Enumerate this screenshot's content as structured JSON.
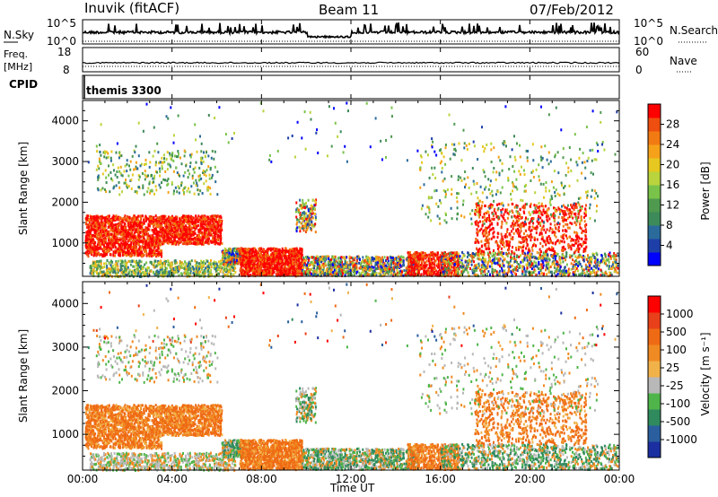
{
  "header": {
    "station": "Inuvik (fitACF)",
    "beam": "Beam 11",
    "date": "07/Feb/2012"
  },
  "chart_data": [
    {
      "type": "line",
      "name": "noise-panel",
      "left_label": "N.Sky",
      "right_label": "N.Search",
      "left_ticks": [
        "10^5",
        "10^0"
      ],
      "right_ticks": [
        "10^5",
        "10^0"
      ],
      "yscale": "log",
      "ylim": [
        1,
        100000
      ]
    },
    {
      "type": "line",
      "name": "freq-panel",
      "left_label_lines": [
        "Freq.",
        "[MHz]"
      ],
      "left_ticks": [
        "18",
        "8"
      ],
      "ylim_left": [
        8,
        18
      ],
      "right_label": "Nave",
      "right_ticks": [
        "60",
        "0"
      ],
      "ylim_right": [
        0,
        60
      ]
    },
    {
      "type": "table",
      "name": "cpid-panel",
      "label": "CPID",
      "program": "themis 3300"
    },
    {
      "type": "heatmap",
      "name": "power-panel",
      "ylabel": "Slant Range [km]",
      "yticks": [
        "4000",
        "3000",
        "2000",
        "1000"
      ],
      "ylim": [
        180,
        4500
      ],
      "colorbar": {
        "label": "Power [dB]",
        "ticks": [
          "28",
          "24",
          "20",
          "16",
          "12",
          "8",
          "4"
        ],
        "colors": [
          "#0000ff",
          "#1e3fa8",
          "#2a6b9c",
          "#3d8a5a",
          "#4f9a4f",
          "#79c34a",
          "#b9d43c",
          "#e6c820",
          "#f5a21a",
          "#f27a12",
          "#ee4e10",
          "#ff0000"
        ]
      }
    },
    {
      "type": "heatmap",
      "name": "velocity-panel",
      "ylabel": "Slant Range [km]",
      "yticks": [
        "4000",
        "3000",
        "2000",
        "1000"
      ],
      "ylim": [
        180,
        4500
      ],
      "colorbar": {
        "label": "Velocity [m s⁻¹]",
        "ticks": [
          "1000",
          "500",
          "100",
          "25",
          "-25",
          "-100",
          "-500",
          "-1000"
        ],
        "colors": [
          "#1b2fa0",
          "#2a5e9e",
          "#2f8a5e",
          "#4fb54a",
          "#b8b8b8",
          "#f2b24a",
          "#f08a22",
          "#ef6a14",
          "#e8401a",
          "#ff0000"
        ]
      }
    }
  ],
  "xaxis": {
    "label": "Time UT",
    "ticks": [
      "00:00",
      "04:00",
      "08:00",
      "12:00",
      "16:00",
      "20:00",
      "00:00"
    ],
    "range_hours": [
      0,
      24
    ]
  }
}
